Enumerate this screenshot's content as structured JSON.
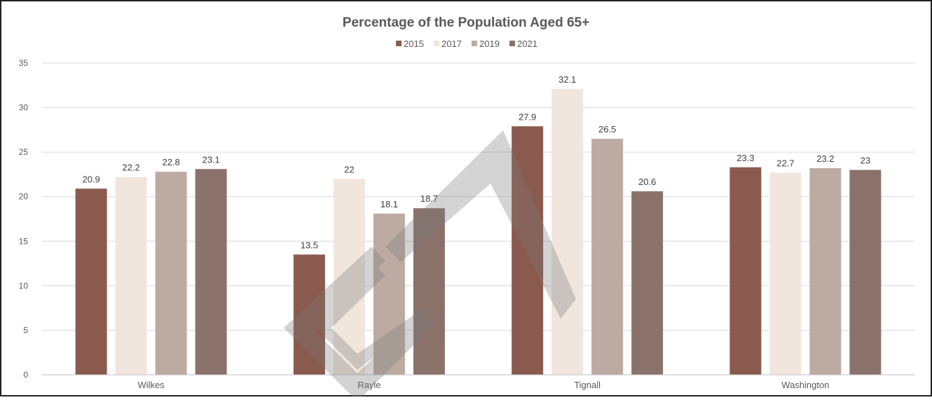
{
  "chart_data": {
    "type": "bar",
    "title": "Percentage of the Population Aged 65+",
    "categories": [
      "Wilkes",
      "Rayle",
      "Tignall",
      "Washington"
    ],
    "series": [
      {
        "name": "2015",
        "values": [
          20.9,
          13.5,
          27.9,
          23.3
        ],
        "color": "#8B5A4E"
      },
      {
        "name": "2017",
        "values": [
          22.2,
          22,
          32.1,
          22.7
        ],
        "color": "#F0E6DE"
      },
      {
        "name": "2019",
        "values": [
          22.8,
          18.1,
          26.5,
          23.2
        ],
        "color": "#BDABA3"
      },
      {
        "name": "2021",
        "values": [
          23.1,
          18.7,
          20.6,
          23
        ],
        "color": "#8A726B"
      }
    ],
    "yticks": [
      "0",
      "5",
      "10",
      "15",
      "20",
      "25",
      "30",
      "35"
    ],
    "ylim": [
      0,
      35
    ],
    "grid": true,
    "legend_position": "top-center"
  }
}
